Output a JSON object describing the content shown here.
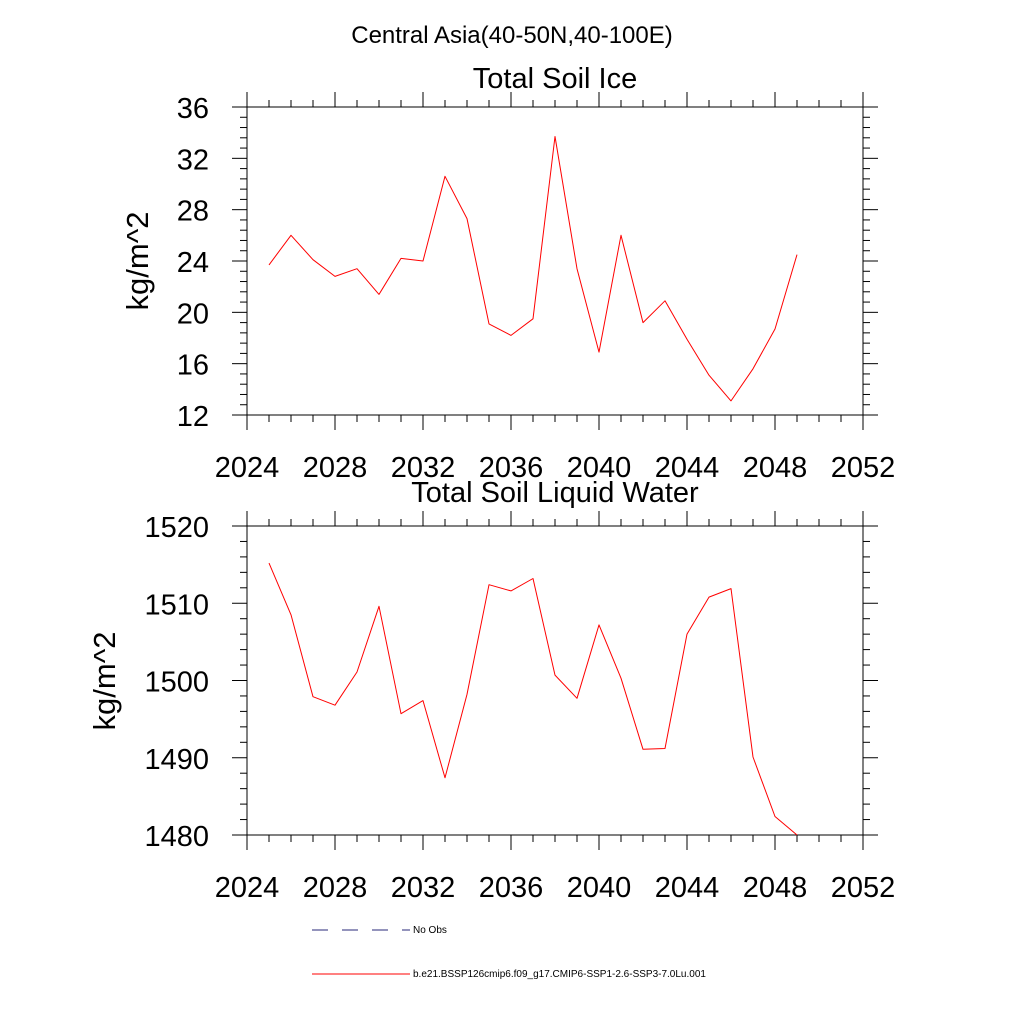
{
  "figure": {
    "main_title": "Central Asia(40-50N,40-100E)"
  },
  "chart_data": [
    {
      "type": "line",
      "title": "Total Soil Ice",
      "xlabel": "",
      "ylabel": "kg/m^2",
      "xlim": [
        2024,
        2052
      ],
      "ylim": [
        12,
        36
      ],
      "x_ticks": [
        2024,
        2028,
        2032,
        2036,
        2040,
        2044,
        2048,
        2052
      ],
      "y_ticks": [
        12,
        16,
        20,
        24,
        28,
        32,
        36
      ],
      "x_tick_labels": [
        "2024",
        "2028",
        "2032",
        "2036",
        "2040",
        "2044",
        "2048",
        "2052"
      ],
      "y_tick_labels": [
        "12",
        "16",
        "20",
        "24",
        "28",
        "32",
        "36"
      ],
      "grid": false,
      "series": [
        {
          "color": "#ff0000",
          "x": [
            2025,
            2026,
            2027,
            2028,
            2029,
            2030,
            2031,
            2032,
            2033,
            2034,
            2035,
            2036,
            2037,
            2038,
            2039,
            2040,
            2041,
            2042,
            2043,
            2044,
            2045,
            2046,
            2047,
            2048,
            2049
          ],
          "values": [
            23.7,
            26.0,
            24.1,
            22.8,
            23.4,
            21.4,
            24.2,
            24.0,
            30.6,
            27.3,
            19.1,
            18.2,
            19.5,
            33.7,
            23.4,
            16.9,
            26.0,
            19.2,
            20.9,
            17.9,
            15.1,
            13.1,
            15.6,
            18.7,
            24.5
          ]
        }
      ]
    },
    {
      "type": "line",
      "title": "Total Soil Liquid Water",
      "xlabel": "",
      "ylabel": "kg/m^2",
      "xlim": [
        2024,
        2052
      ],
      "ylim": [
        1480,
        1520
      ],
      "x_ticks": [
        2024,
        2028,
        2032,
        2036,
        2040,
        2044,
        2048,
        2052
      ],
      "y_ticks": [
        1480,
        1490,
        1500,
        1510,
        1520
      ],
      "x_tick_labels": [
        "2024",
        "2028",
        "2032",
        "2036",
        "2040",
        "2044",
        "2048",
        "2052"
      ],
      "y_tick_labels": [
        "1480",
        "1490",
        "1500",
        "1510",
        "1520"
      ],
      "grid": false,
      "series": [
        {
          "color": "#ff0000",
          "x": [
            2025,
            2026,
            2027,
            2028,
            2029,
            2030,
            2031,
            2032,
            2033,
            2034,
            2035,
            2036,
            2037,
            2038,
            2039,
            2040,
            2041,
            2042,
            2043,
            2044,
            2045,
            2046,
            2047,
            2048,
            2049
          ],
          "values": [
            1515.2,
            1508.5,
            1497.9,
            1496.8,
            1501.1,
            1509.6,
            1495.7,
            1497.4,
            1487.4,
            1498.2,
            1512.4,
            1511.6,
            1513.2,
            1500.7,
            1497.7,
            1507.2,
            1500.3,
            1491.1,
            1491.2,
            1506.0,
            1510.8,
            1511.9,
            1490.1,
            1482.4,
            1480.0
          ]
        }
      ]
    }
  ],
  "legend": {
    "placement": "bottom",
    "items": [
      {
        "label": "No Obs",
        "color": "#2a2a7a",
        "style": "dashed"
      },
      {
        "label": "b.e21.BSSP126cmip6.f09_g17.CMIP6-SSP1-2.6-SSP3-7.0Lu.001",
        "color": "#ff0000",
        "style": "solid"
      }
    ]
  }
}
